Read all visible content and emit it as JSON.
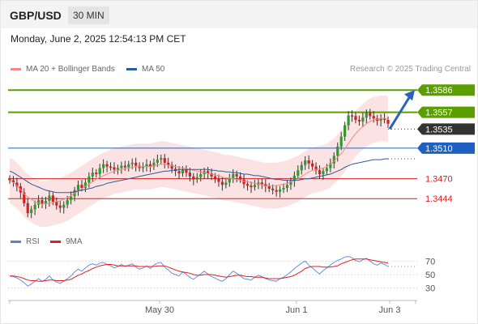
{
  "header": {
    "symbol": "GBP/USD",
    "timeframe": "30 MIN"
  },
  "date_line": "Monday, June 2, 2025 12:54:13 PM CET",
  "legend": {
    "main": [
      {
        "label": "MA 20 + Bollinger Bands",
        "color": "#f08a8a"
      },
      {
        "label": "MA 50",
        "color": "#2e5a9a"
      }
    ],
    "credit": "Research © 2025 Trading Central",
    "rsi": [
      {
        "label": "RSI",
        "color": "#5b7fd6"
      },
      {
        "label": "9MA",
        "color": "#e02020"
      }
    ]
  },
  "colors": {
    "green": "#5a9e00",
    "blue": "#2060c0",
    "red": "#d42020",
    "dark": "#333333"
  },
  "chart_data": {
    "type": "candlestick",
    "x_labels": [
      "May 30",
      "Jun 1",
      "Jun 3"
    ],
    "ylim": [
      1.3405,
      1.36
    ],
    "close": [
      1.3468,
      1.3465,
      1.346,
      1.3452,
      1.3438,
      1.3425,
      1.343,
      1.3436,
      1.3442,
      1.3437,
      1.3441,
      1.3448,
      1.344,
      1.3435,
      1.3432,
      1.3436,
      1.3442,
      1.3447,
      1.3455,
      1.3462,
      1.3458,
      1.3465,
      1.3473,
      1.3478,
      1.3476,
      1.3484,
      1.3489,
      1.3486,
      1.3485,
      1.3482,
      1.3484,
      1.3487,
      1.3485,
      1.3489,
      1.3491,
      1.3487,
      1.3484,
      1.3486,
      1.3489,
      1.3486,
      1.3491,
      1.3495,
      1.3497,
      1.3491,
      1.3488,
      1.3483,
      1.348,
      1.3477,
      1.3482,
      1.3478,
      1.3473,
      1.3469,
      1.3472,
      1.3476,
      1.348,
      1.3477,
      1.3473,
      1.347,
      1.3466,
      1.3462,
      1.3465,
      1.3471,
      1.3476,
      1.3473,
      1.3469,
      1.3463,
      1.3461,
      1.3459,
      1.3462,
      1.3465,
      1.3463,
      1.346,
      1.3457,
      1.3455,
      1.3453,
      1.3456,
      1.3458,
      1.3462,
      1.3467,
      1.3474,
      1.3481,
      1.3488,
      1.3494,
      1.349,
      1.3486,
      1.3481,
      1.3476,
      1.348,
      1.3484,
      1.349,
      1.35,
      1.3512,
      1.3525,
      1.354,
      1.3553,
      1.3552,
      1.3547,
      1.3545,
      1.355,
      1.3556,
      1.3552,
      1.3549,
      1.3546,
      1.3549,
      1.3547,
      1.3542
    ],
    "series": [
      {
        "name": "MA 20 + Bollinger Bands",
        "values": [
          1.3468,
          1.3465,
          1.3461,
          1.3456,
          1.345,
          1.3446,
          1.3443,
          1.344,
          1.3438,
          1.3437,
          1.3437,
          1.3438,
          1.3439,
          1.344,
          1.3441,
          1.3443,
          1.3445,
          1.3448,
          1.3451,
          1.3454,
          1.3457,
          1.346,
          1.3463,
          1.3466,
          1.3469,
          1.3472,
          1.3474,
          1.3476,
          1.3478,
          1.348,
          1.3481,
          1.3482,
          1.3483,
          1.3484,
          1.3485,
          1.3486,
          1.3486,
          1.3486,
          1.3486,
          1.3486,
          1.3487,
          1.3488,
          1.3489,
          1.3489,
          1.3488,
          1.3487,
          1.3486,
          1.3485,
          1.3484,
          1.3483,
          1.3482,
          1.3481,
          1.348,
          1.3479,
          1.3478,
          1.3477,
          1.3476,
          1.3475,
          1.3474,
          1.3472,
          1.3471,
          1.3471,
          1.347,
          1.3469,
          1.3468,
          1.3467,
          1.3466,
          1.3465,
          1.3464,
          1.3463,
          1.3462,
          1.3461,
          1.3461,
          1.3461,
          1.3461,
          1.3462,
          1.3463,
          1.3464,
          1.3466,
          1.3468,
          1.347,
          1.3473,
          1.3476,
          1.3479,
          1.3481,
          1.3482,
          1.3483,
          1.3484,
          1.3486,
          1.3489,
          1.3493,
          1.3498,
          1.3503,
          1.3509,
          1.3516,
          1.3523,
          1.3529,
          1.3534,
          1.3538,
          1.3542,
          1.3545,
          1.3547,
          1.3548,
          1.3549,
          1.3549,
          1.3548
        ]
      },
      {
        "name": "MA 50",
        "values": [
          1.348,
          1.3478,
          1.3475,
          1.3472,
          1.3469,
          1.3466,
          1.3463,
          1.3461,
          1.3459,
          1.3457,
          1.3455,
          1.3454,
          1.3453,
          1.3452,
          1.3452,
          1.3452,
          1.3452,
          1.3452,
          1.3453,
          1.3454,
          1.3455,
          1.3456,
          1.3457,
          1.3458,
          1.346,
          1.3461,
          1.3462,
          1.3464,
          1.3465,
          1.3466,
          1.3467,
          1.3468,
          1.3469,
          1.347,
          1.3471,
          1.3472,
          1.3473,
          1.3474,
          1.3475,
          1.3476,
          1.3477,
          1.3478,
          1.3479,
          1.348,
          1.348,
          1.3481,
          1.3481,
          1.3482,
          1.3482,
          1.3482,
          1.3482,
          1.3482,
          1.3482,
          1.3482,
          1.3482,
          1.3482,
          1.3481,
          1.3481,
          1.348,
          1.348,
          1.3479,
          1.3479,
          1.3478,
          1.3478,
          1.3477,
          1.3476,
          1.3476,
          1.3475,
          1.3474,
          1.3474,
          1.3473,
          1.3472,
          1.3471,
          1.347,
          1.3469,
          1.3469,
          1.3468,
          1.3468,
          1.3468,
          1.3468,
          1.3468,
          1.3469,
          1.347,
          1.347,
          1.3471,
          1.3472,
          1.3473,
          1.3474,
          1.3475,
          1.3476,
          1.3478,
          1.348,
          1.3482,
          1.3485,
          1.3487,
          1.3489,
          1.349,
          1.3491,
          1.3492,
          1.3493,
          1.3494,
          1.3495,
          1.3495,
          1.3495,
          1.3496,
          1.3496
        ]
      }
    ],
    "bb_width": 0.003,
    "levels": [
      {
        "value": "1.3586",
        "price": 1.3586,
        "color": "green",
        "style": "solid"
      },
      {
        "value": "1.3557",
        "price": 1.3557,
        "color": "green",
        "style": "solid"
      },
      {
        "value": "1.3535",
        "price": 1.3535,
        "color": "dark",
        "style": "dotted"
      },
      {
        "value": "1.3510",
        "price": 1.351,
        "color": "blue",
        "style": "solid"
      },
      {
        "value": "1.3470",
        "price": 1.347,
        "color": "red",
        "style": "solid"
      },
      {
        "value": "1.3444",
        "price": 1.3444,
        "color": "red",
        "style": "solid"
      }
    ],
    "forecast_arrow": {
      "from": 1.3535,
      "to": 1.3586
    },
    "rsi": {
      "ylim": [
        20,
        80
      ],
      "ticks": [
        "70",
        "50",
        "30"
      ],
      "values": [
        48,
        47,
        45,
        42,
        38,
        33,
        36,
        40,
        44,
        40,
        43,
        48,
        42,
        39,
        37,
        40,
        44,
        48,
        54,
        58,
        55,
        60,
        64,
        66,
        64,
        67,
        68,
        65,
        63,
        60,
        62,
        65,
        62,
        64,
        66,
        61,
        58,
        60,
        63,
        59,
        64,
        67,
        68,
        61,
        57,
        52,
        50,
        48,
        54,
        50,
        46,
        43,
        47,
        51,
        55,
        51,
        47,
        45,
        42,
        40,
        44,
        50,
        55,
        52,
        48,
        44,
        43,
        42,
        46,
        49,
        47,
        44,
        42,
        41,
        40,
        44,
        46,
        50,
        54,
        59,
        63,
        67,
        70,
        64,
        60,
        55,
        51,
        56,
        60,
        64,
        68,
        71,
        73,
        76,
        77,
        75,
        71,
        69,
        72,
        74,
        70,
        66,
        64,
        67,
        65,
        62
      ],
      "ma9": [
        48,
        48,
        47,
        46,
        44,
        42,
        41,
        41,
        40,
        40,
        41,
        42,
        42,
        41,
        41,
        41,
        42,
        43,
        46,
        49,
        51,
        54,
        56,
        59,
        61,
        63,
        64,
        65,
        65,
        64,
        63,
        63,
        63,
        63,
        63,
        63,
        62,
        62,
        62,
        62,
        62,
        63,
        63,
        63,
        61,
        59,
        57,
        55,
        54,
        53,
        52,
        50,
        49,
        49,
        50,
        50,
        50,
        49,
        48,
        47,
        46,
        47,
        48,
        49,
        49,
        48,
        47,
        47,
        46,
        46,
        46,
        45,
        44,
        44,
        44,
        44,
        45,
        46,
        47,
        49,
        52,
        55,
        59,
        61,
        62,
        62,
        62,
        61,
        61,
        61,
        62,
        63,
        66,
        68,
        70,
        72,
        73,
        73,
        73,
        73,
        72,
        71,
        70,
        69,
        68,
        67
      ]
    }
  }
}
